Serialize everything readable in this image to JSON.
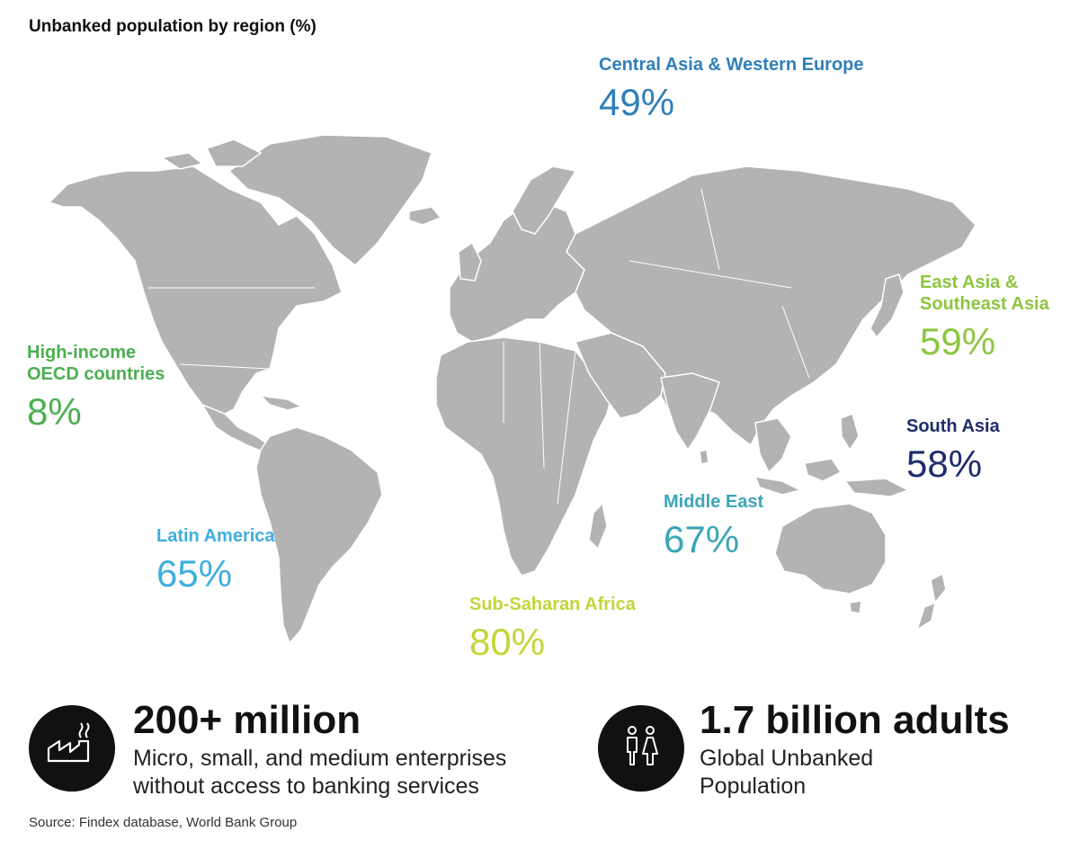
{
  "title": "Unbanked population by region (%)",
  "regions": [
    {
      "name": "Central Asia & Western Europe",
      "value": "49%",
      "color": "#2f7fb8"
    },
    {
      "name": "East Asia & Southeast Asia",
      "value": "59%",
      "color": "#8cc63f"
    },
    {
      "name": "High-income OECD countries",
      "value": "8%",
      "color": "#4caf50"
    },
    {
      "name": "South Asia",
      "value": "58%",
      "color": "#1f2d6b"
    },
    {
      "name": "Middle East",
      "value": "67%",
      "color": "#3aa6b9"
    },
    {
      "name": "Latin America",
      "value": "65%",
      "color": "#3eaee0"
    },
    {
      "name": "Sub-Saharan Africa",
      "value": "80%",
      "color": "#c5d43a"
    }
  ],
  "stats": [
    {
      "headline": "200+ million",
      "line1": "Micro, small, and medium enterprises",
      "line2": "without access to banking services",
      "icon": "factory-icon"
    },
    {
      "headline": "1.7 billion adults",
      "line1": "Global Unbanked",
      "line2": "Population",
      "icon": "people-icon"
    }
  ],
  "source": "Source: Findex database, World Bank Group"
}
